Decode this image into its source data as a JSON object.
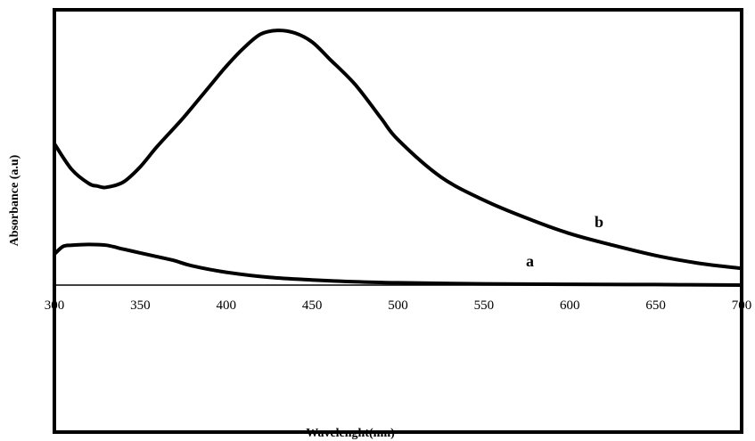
{
  "chart_data": {
    "type": "line",
    "title": "",
    "xlabel": "Wavelenght(nm)",
    "ylabel": "Absorbance (a.u)",
    "xlim": [
      300,
      700
    ],
    "ylim": [
      0,
      1.0
    ],
    "x_ticks": [
      "300",
      "350",
      "400",
      "450",
      "500",
      "550",
      "600",
      "650",
      "700"
    ],
    "y_ticks_visible": false,
    "grid": false,
    "legend": "none",
    "series": [
      {
        "name": "a",
        "x": [
          300,
          305,
          310,
          320,
          330,
          340,
          350,
          360,
          370,
          380,
          400,
          425,
          450,
          475,
          500,
          550,
          600,
          650,
          700
        ],
        "y": [
          0.12,
          0.15,
          0.155,
          0.158,
          0.155,
          0.14,
          0.125,
          0.11,
          0.095,
          0.075,
          0.05,
          0.03,
          0.02,
          0.013,
          0.009,
          0.005,
          0.003,
          0.002,
          0.0
        ]
      },
      {
        "name": "b",
        "x": [
          300,
          310,
          320,
          325,
          330,
          340,
          350,
          360,
          375,
          390,
          400,
          410,
          420,
          430,
          440,
          450,
          460,
          475,
          490,
          500,
          525,
          550,
          575,
          600,
          625,
          650,
          675,
          700
        ],
        "y": [
          0.55,
          0.45,
          0.395,
          0.385,
          0.38,
          0.4,
          0.46,
          0.54,
          0.65,
          0.77,
          0.85,
          0.92,
          0.975,
          0.99,
          0.98,
          0.945,
          0.88,
          0.78,
          0.65,
          0.565,
          0.42,
          0.33,
          0.26,
          0.2,
          0.155,
          0.115,
          0.085,
          0.065
        ]
      }
    ],
    "annotations": [
      "a",
      "b"
    ]
  },
  "colors": {
    "line": "#000000",
    "frame": "#000000",
    "background": "#ffffff"
  }
}
